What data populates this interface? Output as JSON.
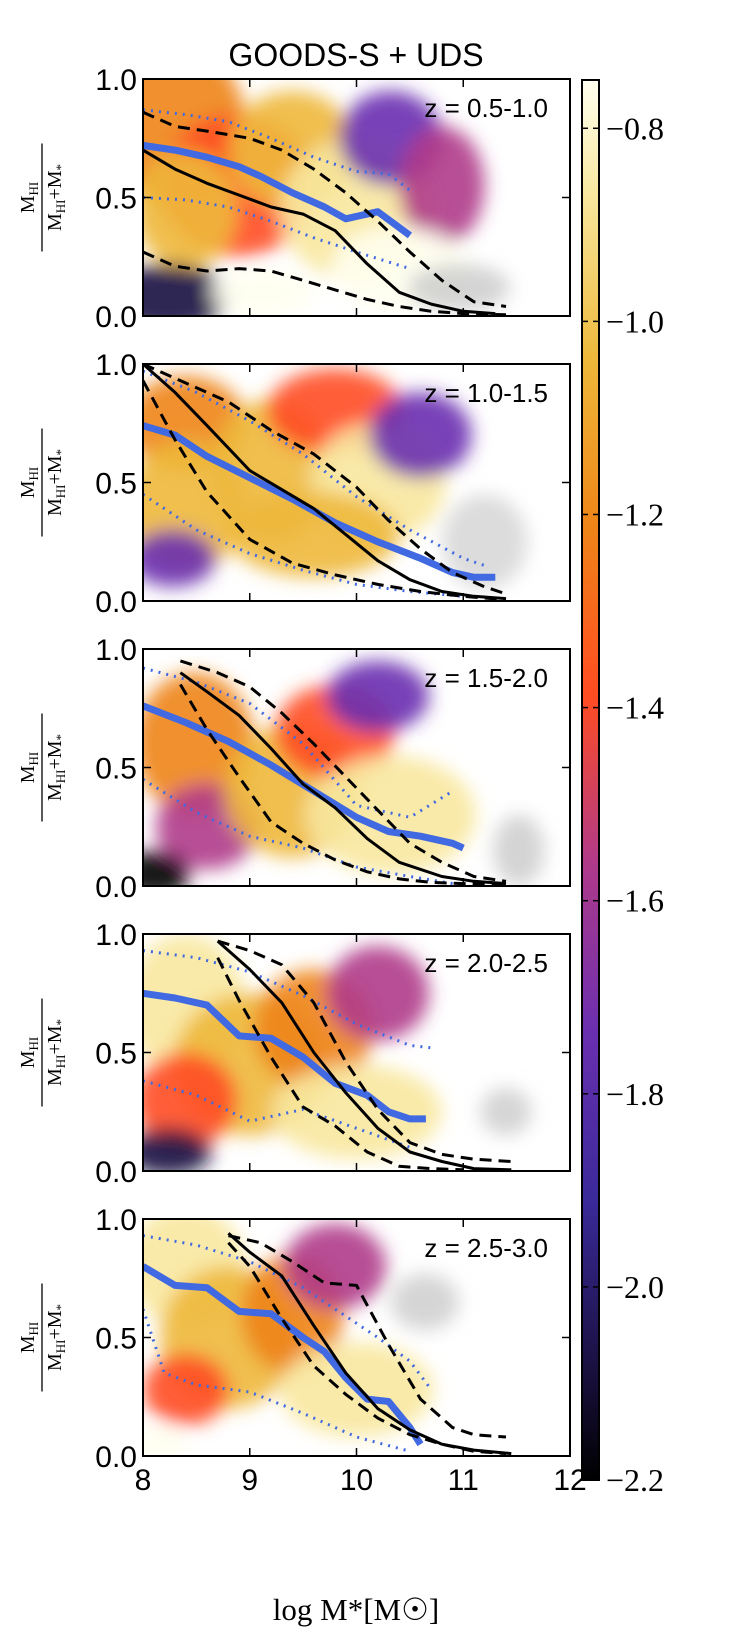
{
  "chart_data": {
    "type": "heatmap",
    "title": "GOODS-S + UDS",
    "xlabel": "log M*[M☉]",
    "ylabel": "M_HI / (M_HI+M*)",
    "xlim": [
      8,
      12
    ],
    "ylim": [
      0,
      1
    ],
    "xticks": [
      "8",
      "9",
      "10",
      "11",
      "12"
    ],
    "yticks": [
      "0.0",
      "0.5",
      "1.0"
    ],
    "colorbar": {
      "range": [
        -2.2,
        -0.75
      ],
      "ticks": [
        "−0.8",
        "−1.0",
        "−1.2",
        "−1.4",
        "−1.6",
        "−1.8",
        "−2.0",
        "−2.2"
      ],
      "tick_values": [
        -0.8,
        -1.0,
        -1.2,
        -1.4,
        -1.6,
        -1.8,
        -2.0,
        -2.2
      ],
      "colormap": [
        "#000000",
        "#1a1040",
        "#3a2a9a",
        "#6a2fb0",
        "#b03a8a",
        "#ff4c22",
        "#ee8418",
        "#eeb83a",
        "#f8e8a0",
        "#fffff0"
      ]
    },
    "panels": [
      {
        "label": "z = 0.5-1.0",
        "blue_median": {
          "x": [
            8.0,
            8.3,
            8.6,
            8.9,
            9.1,
            9.4,
            9.7,
            9.9,
            10.2,
            10.5
          ],
          "y": [
            0.72,
            0.7,
            0.67,
            0.63,
            0.59,
            0.52,
            0.46,
            0.41,
            0.44,
            0.34
          ]
        },
        "blue_dotted_upper": {
          "x": [
            8.0,
            8.4,
            8.8,
            9.2,
            9.6,
            10.0,
            10.3,
            10.5
          ],
          "y": [
            0.87,
            0.85,
            0.82,
            0.75,
            0.67,
            0.61,
            0.6,
            0.53
          ]
        },
        "blue_dotted_lower": {
          "x": [
            8.0,
            8.4,
            8.8,
            9.2,
            9.6,
            10.0,
            10.5
          ],
          "y": [
            0.5,
            0.49,
            0.46,
            0.4,
            0.33,
            0.27,
            0.2
          ]
        },
        "black_median": {
          "x": [
            8.0,
            8.3,
            8.6,
            8.9,
            9.2,
            9.5,
            9.8,
            10.1,
            10.4,
            10.7,
            11.0,
            11.3
          ],
          "y": [
            0.7,
            0.62,
            0.56,
            0.51,
            0.46,
            0.43,
            0.36,
            0.22,
            0.1,
            0.05,
            0.02,
            0.01
          ]
        },
        "black_dashed_upper": {
          "x": [
            8.0,
            8.3,
            8.6,
            9.0,
            9.3,
            9.6,
            9.9,
            10.2,
            10.5,
            10.8,
            11.1,
            11.4
          ],
          "y": [
            0.86,
            0.8,
            0.78,
            0.75,
            0.7,
            0.62,
            0.52,
            0.4,
            0.27,
            0.15,
            0.06,
            0.04
          ]
        },
        "black_dashed_lower": {
          "x": [
            8.0,
            8.3,
            8.6,
            8.9,
            9.2,
            9.5,
            9.8,
            10.1,
            10.4,
            10.7,
            11.0,
            11.4
          ],
          "y": [
            0.27,
            0.21,
            0.19,
            0.2,
            0.19,
            0.15,
            0.11,
            0.07,
            0.04,
            0.02,
            0.01,
            0.005
          ]
        }
      },
      {
        "label": "z = 1.0-1.5",
        "blue_median": {
          "x": [
            8.0,
            8.3,
            8.6,
            9.0,
            9.4,
            9.8,
            10.2,
            10.6,
            10.9,
            11.1,
            11.3
          ],
          "y": [
            0.74,
            0.7,
            0.61,
            0.52,
            0.43,
            0.33,
            0.25,
            0.18,
            0.12,
            0.1,
            0.1
          ]
        },
        "blue_dotted_upper": {
          "x": [
            8.0,
            8.5,
            9.0,
            9.5,
            10.0,
            10.5,
            11.0,
            11.2
          ],
          "y": [
            0.97,
            0.88,
            0.76,
            0.62,
            0.44,
            0.3,
            0.18,
            0.15
          ]
        },
        "blue_dotted_lower": {
          "x": [
            8.0,
            8.5,
            9.0,
            9.5,
            10.0,
            10.5,
            11.0
          ],
          "y": [
            0.45,
            0.3,
            0.2,
            0.13,
            0.07,
            0.04,
            0.02
          ]
        },
        "black_median": {
          "x": [
            8.0,
            8.3,
            8.6,
            9.0,
            9.3,
            9.6,
            9.9,
            10.2,
            10.5,
            10.8,
            11.1,
            11.4
          ],
          "y": [
            1.0,
            0.88,
            0.74,
            0.55,
            0.47,
            0.39,
            0.28,
            0.17,
            0.09,
            0.04,
            0.02,
            0.01
          ]
        },
        "black_dashed_upper": {
          "x": [
            8.0,
            8.4,
            8.8,
            9.2,
            9.6,
            10.0,
            10.3,
            10.6,
            10.9,
            11.2,
            11.4
          ],
          "y": [
            1.0,
            0.92,
            0.84,
            0.72,
            0.62,
            0.48,
            0.34,
            0.22,
            0.12,
            0.06,
            0.03
          ]
        },
        "black_dashed_lower": {
          "x": [
            8.0,
            8.3,
            8.6,
            9.0,
            9.4,
            9.8,
            10.2,
            10.6,
            11.0,
            11.4
          ],
          "y": [
            0.93,
            0.68,
            0.46,
            0.26,
            0.16,
            0.11,
            0.07,
            0.04,
            0.02,
            0.005
          ]
        }
      },
      {
        "label": "z = 1.5-2.0",
        "blue_median": {
          "x": [
            8.0,
            8.4,
            8.8,
            9.2,
            9.6,
            10.0,
            10.3,
            10.6,
            10.9,
            11.0
          ],
          "y": [
            0.76,
            0.69,
            0.61,
            0.51,
            0.4,
            0.29,
            0.23,
            0.21,
            0.18,
            0.16
          ]
        },
        "blue_dotted_upper": {
          "x": [
            8.0,
            8.5,
            9.0,
            9.5,
            10.0,
            10.5,
            10.9
          ],
          "y": [
            0.92,
            0.86,
            0.77,
            0.6,
            0.34,
            0.29,
            0.4
          ]
        },
        "blue_dotted_lower": {
          "x": [
            8.0,
            8.5,
            9.0,
            9.5,
            10.0,
            10.5,
            10.9
          ],
          "y": [
            0.45,
            0.31,
            0.21,
            0.16,
            0.08,
            0.04,
            0.01
          ]
        },
        "black_median": {
          "x": [
            8.35,
            8.6,
            8.9,
            9.2,
            9.5,
            9.8,
            10.1,
            10.4,
            10.8,
            11.1,
            11.4
          ],
          "y": [
            0.9,
            0.82,
            0.72,
            0.58,
            0.43,
            0.33,
            0.2,
            0.1,
            0.04,
            0.02,
            0.01
          ]
        },
        "black_dashed_upper": {
          "x": [
            8.35,
            8.7,
            9.0,
            9.3,
            9.6,
            9.9,
            10.2,
            10.5,
            10.8,
            11.1,
            11.4
          ],
          "y": [
            0.95,
            0.9,
            0.84,
            0.73,
            0.6,
            0.46,
            0.32,
            0.18,
            0.1,
            0.04,
            0.02
          ]
        },
        "black_dashed_lower": {
          "x": [
            8.35,
            8.6,
            8.9,
            9.2,
            9.5,
            9.8,
            10.1,
            10.4,
            10.7,
            11.0,
            11.4
          ],
          "y": [
            0.85,
            0.66,
            0.46,
            0.27,
            0.18,
            0.11,
            0.06,
            0.03,
            0.015,
            0.01,
            0.005
          ]
        }
      },
      {
        "label": "z = 2.0-2.5",
        "blue_median": {
          "x": [
            8.0,
            8.3,
            8.6,
            8.9,
            9.2,
            9.5,
            9.8,
            10.1,
            10.3,
            10.5,
            10.65
          ],
          "y": [
            0.75,
            0.73,
            0.7,
            0.57,
            0.56,
            0.48,
            0.37,
            0.32,
            0.25,
            0.22,
            0.22
          ]
        },
        "blue_dotted_upper": {
          "x": [
            8.0,
            8.5,
            9.0,
            9.5,
            10.0,
            10.5,
            10.7
          ],
          "y": [
            0.93,
            0.9,
            0.84,
            0.74,
            0.62,
            0.53,
            0.52
          ]
        },
        "blue_dotted_lower": {
          "x": [
            8.0,
            8.5,
            9.0,
            9.5,
            10.0,
            10.5
          ],
          "y": [
            0.38,
            0.32,
            0.21,
            0.26,
            0.18,
            0.1
          ]
        },
        "black_median": {
          "x": [
            8.7,
            9.0,
            9.3,
            9.6,
            9.9,
            10.2,
            10.5,
            10.8,
            11.1,
            11.45
          ],
          "y": [
            0.97,
            0.85,
            0.71,
            0.5,
            0.33,
            0.18,
            0.08,
            0.04,
            0.01,
            0.005
          ]
        },
        "black_dashed_upper": {
          "x": [
            8.7,
            9.0,
            9.3,
            9.6,
            9.9,
            10.2,
            10.5,
            10.8,
            11.1,
            11.45
          ],
          "y": [
            0.97,
            0.93,
            0.87,
            0.71,
            0.46,
            0.26,
            0.12,
            0.07,
            0.05,
            0.04
          ]
        },
        "black_dashed_lower": {
          "x": [
            8.7,
            8.9,
            9.2,
            9.5,
            9.8,
            10.1,
            10.4,
            10.7,
            11.0
          ],
          "y": [
            0.9,
            0.72,
            0.48,
            0.27,
            0.19,
            0.08,
            0.02,
            0.01,
            0.005
          ]
        }
      },
      {
        "label": "z = 2.5-3.0",
        "blue_median": {
          "x": [
            8.0,
            8.3,
            8.6,
            8.9,
            9.2,
            9.5,
            9.7,
            9.9,
            10.1,
            10.3,
            10.5,
            10.6
          ],
          "y": [
            0.8,
            0.72,
            0.71,
            0.61,
            0.6,
            0.5,
            0.44,
            0.33,
            0.24,
            0.23,
            0.12,
            0.05
          ]
        },
        "blue_dotted_upper": {
          "x": [
            8.0,
            8.5,
            9.0,
            9.5,
            9.9,
            10.2,
            10.5,
            10.7
          ],
          "y": [
            0.93,
            0.89,
            0.82,
            0.71,
            0.59,
            0.5,
            0.4,
            0.28
          ]
        },
        "blue_dotted_lower": {
          "x": [
            8.0,
            8.2,
            8.5,
            9.0,
            9.5,
            10.0,
            10.5
          ],
          "y": [
            0.62,
            0.35,
            0.3,
            0.27,
            0.18,
            0.08,
            0.02
          ]
        },
        "black_median": {
          "x": [
            8.8,
            9.0,
            9.3,
            9.6,
            9.9,
            10.2,
            10.5,
            10.8,
            11.1,
            11.45
          ],
          "y": [
            0.94,
            0.86,
            0.76,
            0.55,
            0.35,
            0.2,
            0.11,
            0.05,
            0.025,
            0.01
          ]
        },
        "black_dashed_upper": {
          "x": [
            8.8,
            9.1,
            9.4,
            9.7,
            10.0,
            10.3,
            10.6,
            10.9,
            11.1,
            11.4
          ],
          "y": [
            0.93,
            0.9,
            0.82,
            0.73,
            0.72,
            0.47,
            0.24,
            0.12,
            0.09,
            0.08
          ]
        },
        "black_dashed_lower": {
          "x": [
            8.8,
            9.0,
            9.3,
            9.6,
            9.9,
            10.2,
            10.5,
            10.8,
            11.1,
            11.4
          ],
          "y": [
            0.9,
            0.8,
            0.58,
            0.38,
            0.26,
            0.16,
            0.09,
            0.05,
            0.02,
            0.01
          ]
        }
      }
    ]
  }
}
